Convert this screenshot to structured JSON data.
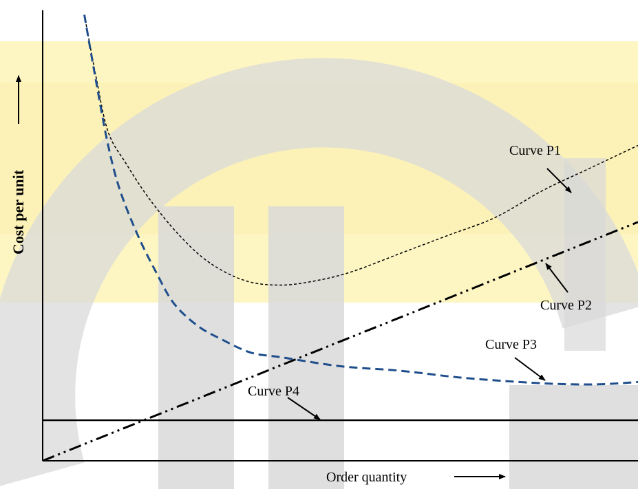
{
  "chart_data": {
    "type": "line",
    "title": "",
    "xlabel": "Order quantity",
    "ylabel": "Cost per unit",
    "xlim": [
      0,
      100
    ],
    "ylim": [
      0,
      100
    ],
    "grid": false,
    "axis_ticks": false,
    "series": [
      {
        "name": "Curve P1",
        "style": "dotted",
        "color": "#000000",
        "points": [
          [
            7,
            99
          ],
          [
            9,
            85
          ],
          [
            11,
            73
          ],
          [
            14,
            66
          ],
          [
            18,
            58
          ],
          [
            23,
            50
          ],
          [
            28,
            44
          ],
          [
            34,
            40
          ],
          [
            40,
            39
          ],
          [
            46,
            40
          ],
          [
            52,
            42
          ],
          [
            60,
            46
          ],
          [
            68,
            50
          ],
          [
            76,
            54
          ],
          [
            84,
            60
          ],
          [
            92,
            65
          ],
          [
            100,
            70
          ]
        ]
      },
      {
        "name": "Curve P2",
        "style": "dash-dot-dot",
        "color": "#000000",
        "points": [
          [
            0,
            0
          ],
          [
            100,
            53
          ]
        ]
      },
      {
        "name": "Curve P3",
        "style": "dashed",
        "color": "#1f4e8c",
        "points": [
          [
            7,
            99
          ],
          [
            9,
            84
          ],
          [
            11,
            70
          ],
          [
            13,
            60
          ],
          [
            16,
            50
          ],
          [
            19,
            42
          ],
          [
            22,
            35
          ],
          [
            26,
            30
          ],
          [
            30,
            27
          ],
          [
            35,
            24
          ],
          [
            40,
            23
          ],
          [
            50,
            21
          ],
          [
            60,
            20
          ],
          [
            70,
            18.5
          ],
          [
            80,
            17.5
          ],
          [
            88,
            17
          ],
          [
            94,
            17
          ],
          [
            100,
            17.5
          ]
        ]
      },
      {
        "name": "Curve P4",
        "style": "solid",
        "color": "#000000",
        "points": [
          [
            0,
            9
          ],
          [
            100,
            9
          ]
        ]
      }
    ],
    "annotations": [
      {
        "text": "Curve P1",
        "pointer": "arrow-to-curve"
      },
      {
        "text": "Curve P2",
        "pointer": "arrow-to-curve"
      },
      {
        "text": "Curve P3",
        "pointer": "arrow-to-curve"
      },
      {
        "text": "Curve P4",
        "pointer": "arrow-to-curve"
      }
    ]
  },
  "colors": {
    "watermark_yellow": "#fdf6c3",
    "watermark_gray": "#d8d8d8",
    "p3_blue": "#1f4e8c"
  }
}
